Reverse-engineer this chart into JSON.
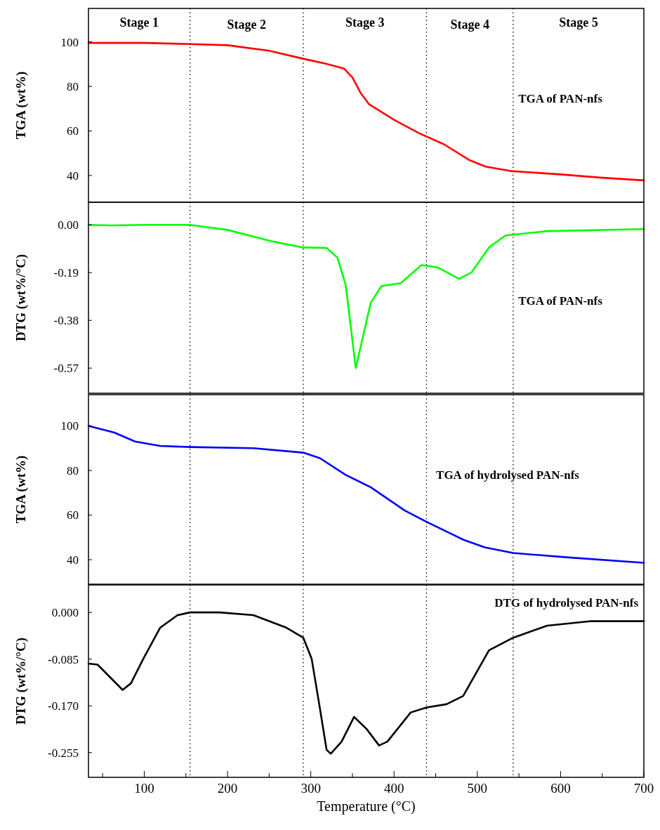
{
  "chart_data": [
    {
      "type": "line",
      "ylabel": "TGA (wt%)",
      "xlim": [
        33,
        700
      ],
      "ylim": [
        28,
        115
      ],
      "yticks": [
        40,
        60,
        80,
        100
      ],
      "tick_labels": "y",
      "grid": false,
      "marker": "none",
      "line_style": "solid",
      "series": [
        {
          "color": "#ff0000",
          "x": [
            33,
            100,
            155,
            200,
            250,
            290,
            320,
            340,
            350,
            360,
            370,
            400,
            430,
            460,
            490,
            510,
            540,
            600,
            650,
            700
          ],
          "values": [
            99.5,
            99.5,
            99,
            98.5,
            96,
            92.5,
            90,
            88,
            84,
            77,
            72,
            65,
            59,
            54,
            47,
            44,
            42,
            40.5,
            39,
            37.8
          ]
        }
      ],
      "ref_lines": [
        {
          "axis": "x",
          "value": 155,
          "color": "#000000",
          "line_style": "dotted"
        },
        {
          "axis": "x",
          "value": 291,
          "color": "#000000",
          "line_style": "dotted"
        },
        {
          "axis": "x",
          "value": 439,
          "color": "#000000",
          "line_style": "dotted"
        },
        {
          "axis": "x",
          "value": 543,
          "color": "#000000",
          "line_style": "dotted"
        }
      ],
      "annotations": [
        "Stage 1",
        "Stage 2",
        "Stage 3",
        "Stage 4",
        "Stage 5",
        "TGA of PAN-nfs"
      ]
    },
    {
      "type": "line",
      "ylabel": "DTG (wt%/°C)",
      "xlim": [
        33,
        700
      ],
      "ylim": [
        -0.67,
        0.09
      ],
      "yticks": [
        {
          "value": 0,
          "label": "0.00"
        },
        -0.19,
        -0.38,
        -0.57
      ],
      "tick_labels": "y",
      "grid": false,
      "marker": "none",
      "line_style": "solid",
      "series": [
        {
          "color": "#00ff00",
          "x": [
            33,
            60,
            100,
            155,
            200,
            251,
            291,
            319,
            332,
            342,
            354,
            372,
            385,
            408,
            433,
            453,
            478,
            493,
            514,
            534,
            584,
            700
          ],
          "values": [
            0,
            -0.002,
            0,
            0,
            -0.02,
            -0.064,
            -0.09,
            -0.092,
            -0.13,
            -0.24,
            -0.57,
            -0.31,
            -0.243,
            -0.232,
            -0.16,
            -0.17,
            -0.215,
            -0.19,
            -0.09,
            -0.042,
            -0.025,
            -0.017
          ]
        }
      ],
      "ref_lines": [
        {
          "axis": "x",
          "value": 155,
          "color": "#000000",
          "line_style": "dotted"
        },
        {
          "axis": "x",
          "value": 291,
          "color": "#000000",
          "line_style": "dotted"
        },
        {
          "axis": "x",
          "value": 439,
          "color": "#000000",
          "line_style": "dotted"
        },
        {
          "axis": "x",
          "value": 543,
          "color": "#000000",
          "line_style": "dotted"
        }
      ],
      "annotations": [
        "TGA of PAN-nfs"
      ]
    },
    {
      "type": "line",
      "ylabel": "TGA (wt%)",
      "xlim": [
        33,
        700
      ],
      "ylim": [
        29,
        114
      ],
      "yticks": [
        40,
        60,
        80,
        100
      ],
      "tick_labels": "y",
      "grid": false,
      "marker": "none",
      "line_style": "solid",
      "series": [
        {
          "color": "#0000ff",
          "x": [
            33,
            64,
            89,
            119,
            155,
            231,
            291,
            311,
            342,
            372,
            413,
            439,
            483,
            509,
            543,
            610,
            700
          ],
          "values": [
            100,
            97,
            93,
            91,
            90.5,
            90,
            88,
            85.5,
            78,
            72.5,
            62,
            57,
            49,
            45.5,
            43,
            41,
            38.6
          ]
        }
      ],
      "ref_lines": [
        {
          "axis": "x",
          "value": 155,
          "color": "#000000",
          "line_style": "dotted"
        },
        {
          "axis": "x",
          "value": 291,
          "color": "#000000",
          "line_style": "dotted"
        },
        {
          "axis": "x",
          "value": 439,
          "color": "#000000",
          "line_style": "dotted"
        },
        {
          "axis": "x",
          "value": 543,
          "color": "#000000",
          "line_style": "dotted"
        }
      ],
      "annotations": [
        "TGA of hydrolysed PAN-nfs"
      ]
    },
    {
      "type": "line",
      "xlabel": "Temperature (°C)",
      "ylabel": "DTG (wt%/°C)",
      "xlim": [
        33,
        700
      ],
      "xticks": [
        {
          "value": 50,
          "label": null
        },
        100,
        {
          "value": 150,
          "label": null
        },
        200,
        {
          "value": 250,
          "label": null
        },
        300,
        {
          "value": 350,
          "label": null
        },
        400,
        {
          "value": 450,
          "label": null
        },
        500,
        {
          "value": 550,
          "label": null
        },
        600,
        {
          "value": 650,
          "label": null
        },
        700
      ],
      "ylim": [
        -0.3,
        0.05
      ],
      "yticks": [
        {
          "value": 0,
          "label": "0.000"
        },
        {
          "value": -0.085,
          "label": "-0.085"
        },
        {
          "value": -0.17,
          "label": "-0.170"
        },
        -0.255
      ],
      "grid": false,
      "marker": "none",
      "line_style": "solid",
      "series": [
        {
          "color": "#000000",
          "x": [
            33,
            44,
            59,
            74,
            84,
            99,
            119,
            140,
            155,
            190,
            231,
            271,
            291,
            301,
            311,
            319,
            324,
            337,
            352,
            367,
            382,
            392,
            420,
            439,
            463,
            483,
            514,
            543,
            584,
            635,
            700
          ],
          "values": [
            -0.093,
            -0.095,
            -0.118,
            -0.141,
            -0.129,
            -0.084,
            -0.028,
            -0.005,
            0,
            0,
            -0.005,
            -0.028,
            -0.046,
            -0.084,
            -0.175,
            -0.25,
            -0.257,
            -0.235,
            -0.19,
            -0.212,
            -0.242,
            -0.235,
            -0.182,
            -0.173,
            -0.167,
            -0.152,
            -0.069,
            -0.046,
            -0.024,
            -0.016,
            -0.016
          ]
        }
      ],
      "ref_lines": [
        {
          "axis": "x",
          "value": 155,
          "color": "#000000",
          "line_style": "dotted"
        },
        {
          "axis": "x",
          "value": 291,
          "color": "#000000",
          "line_style": "dotted"
        },
        {
          "axis": "x",
          "value": 439,
          "color": "#000000",
          "line_style": "dotted"
        },
        {
          "axis": "x",
          "value": 543,
          "color": "#000000",
          "line_style": "dotted"
        }
      ],
      "annotations": [
        "DTG of hydrolysed PAN-nfs"
      ]
    }
  ]
}
